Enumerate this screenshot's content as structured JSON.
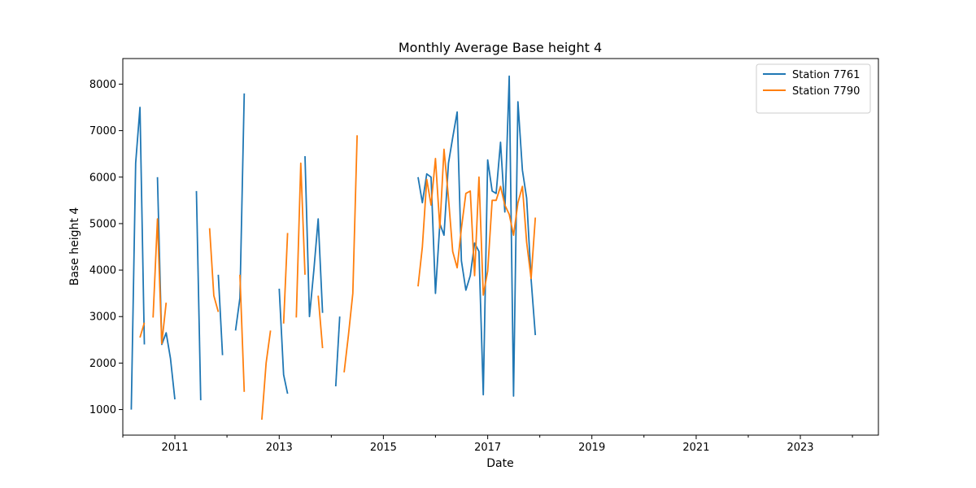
{
  "chart_data": {
    "type": "line",
    "title": "Monthly Average Base height 4",
    "xlabel": "Date",
    "ylabel": "Base height 4",
    "xlim": [
      "2010-01-01",
      "2024-07-01"
    ],
    "ylim": [
      450,
      8550
    ],
    "x_ticks": [
      "2011",
      "2013",
      "2015",
      "2017",
      "2019",
      "2021",
      "2023"
    ],
    "y_ticks": [
      "1000",
      "2000",
      "3000",
      "4000",
      "5000",
      "6000",
      "7000",
      "8000"
    ],
    "grid": false,
    "legend_position": "top-right",
    "series": [
      {
        "name": "Station 7761",
        "color": "#1f77b4",
        "segments": [
          [
            [
              "2010-03-01",
              1000
            ],
            [
              "2010-04-01",
              6300
            ],
            [
              "2010-05-01",
              7500
            ],
            [
              "2010-06-01",
              2400
            ]
          ],
          [
            [
              "2010-09-01",
              6000
            ],
            [
              "2010-10-01",
              2400
            ],
            [
              "2010-11-01",
              2650
            ],
            [
              "2010-12-01",
              2100
            ],
            [
              "2011-01-01",
              1220
            ]
          ],
          [
            [
              "2011-06-01",
              5700
            ],
            [
              "2011-07-01",
              1200
            ]
          ],
          [
            [
              "2011-11-01",
              3900
            ],
            [
              "2011-12-01",
              2170
            ]
          ],
          [
            [
              "2012-03-01",
              2700
            ],
            [
              "2012-04-01",
              3400
            ],
            [
              "2012-05-01",
              7800
            ]
          ],
          [
            [
              "2013-01-01",
              3600
            ],
            [
              "2013-02-01",
              1750
            ],
            [
              "2013-03-01",
              1340
            ]
          ],
          [
            [
              "2013-07-01",
              6450
            ],
            [
              "2013-08-01",
              3000
            ],
            [
              "2013-09-01",
              4000
            ],
            [
              "2013-10-01",
              5100
            ],
            [
              "2013-11-01",
              3080
            ]
          ],
          [
            [
              "2014-02-01",
              1500
            ],
            [
              "2014-03-01",
              3000
            ]
          ],
          [
            [
              "2015-09-01",
              6000
            ],
            [
              "2015-10-01",
              5450
            ],
            [
              "2015-11-01",
              6070
            ],
            [
              "2015-12-01",
              6000
            ],
            [
              "2016-01-01",
              3500
            ],
            [
              "2016-02-01",
              5000
            ],
            [
              "2016-03-01",
              4750
            ],
            [
              "2016-04-01",
              6300
            ],
            [
              "2016-05-01",
              6850
            ],
            [
              "2016-06-01",
              7400
            ],
            [
              "2016-07-01",
              4200
            ],
            [
              "2016-08-01",
              3570
            ],
            [
              "2016-09-01",
              3880
            ],
            [
              "2016-10-01",
              4580
            ],
            [
              "2016-11-01",
              4400
            ],
            [
              "2016-12-01",
              1320
            ],
            [
              "2017-01-01",
              6370
            ],
            [
              "2017-02-01",
              5700
            ],
            [
              "2017-03-01",
              5650
            ],
            [
              "2017-04-01",
              6750
            ],
            [
              "2017-05-01",
              5250
            ],
            [
              "2017-06-01",
              8170
            ],
            [
              "2017-07-01",
              1290
            ],
            [
              "2017-08-01",
              7620
            ],
            [
              "2017-09-01",
              6150
            ],
            [
              "2017-10-01",
              5550
            ],
            [
              "2017-11-01",
              3800
            ],
            [
              "2017-12-01",
              2600
            ]
          ]
        ]
      },
      {
        "name": "Station 7790",
        "color": "#ff7f0e",
        "segments": [
          [
            [
              "2010-05-01",
              2550
            ],
            [
              "2010-06-01",
              2870
            ]
          ],
          [
            [
              "2010-08-01",
              2980
            ],
            [
              "2010-09-01",
              5100
            ],
            [
              "2010-10-01",
              2420
            ],
            [
              "2010-11-01",
              3300
            ]
          ],
          [
            [
              "2011-09-01",
              4900
            ],
            [
              "2011-10-01",
              3450
            ],
            [
              "2011-11-01",
              3100
            ]
          ],
          [
            [
              "2012-04-01",
              3900
            ],
            [
              "2012-05-01",
              1380
            ]
          ],
          [
            [
              "2012-09-01",
              780
            ],
            [
              "2012-10-01",
              2000
            ],
            [
              "2012-11-01",
              2700
            ]
          ],
          [
            [
              "2013-02-01",
              2850
            ],
            [
              "2013-03-01",
              4800
            ]
          ],
          [
            [
              "2013-05-01",
              2980
            ],
            [
              "2013-06-01",
              6300
            ],
            [
              "2013-07-01",
              3900
            ]
          ],
          [
            [
              "2013-10-01",
              3450
            ],
            [
              "2013-11-01",
              2320
            ]
          ],
          [
            [
              "2014-04-01",
              1800
            ],
            [
              "2014-05-01",
              2600
            ],
            [
              "2014-06-01",
              3500
            ],
            [
              "2014-07-01",
              6900
            ]
          ],
          [
            [
              "2015-09-01",
              3650
            ],
            [
              "2015-10-01",
              4500
            ],
            [
              "2015-11-01",
              5950
            ],
            [
              "2015-12-01",
              5400
            ],
            [
              "2016-01-01",
              6400
            ],
            [
              "2016-02-01",
              4900
            ],
            [
              "2016-03-01",
              6600
            ],
            [
              "2016-04-01",
              5550
            ],
            [
              "2016-05-01",
              4400
            ],
            [
              "2016-06-01",
              4050
            ],
            [
              "2016-07-01",
              4900
            ],
            [
              "2016-08-01",
              5650
            ],
            [
              "2016-09-01",
              5700
            ],
            [
              "2016-10-01",
              3880
            ],
            [
              "2016-11-01",
              6000
            ],
            [
              "2016-12-01",
              3460
            ],
            [
              "2017-01-01",
              3980
            ],
            [
              "2017-02-01",
              5500
            ],
            [
              "2017-03-01",
              5500
            ],
            [
              "2017-04-01",
              5800
            ],
            [
              "2017-05-01",
              5400
            ],
            [
              "2017-06-01",
              5200
            ],
            [
              "2017-07-01",
              4750
            ],
            [
              "2017-08-01",
              5450
            ],
            [
              "2017-09-01",
              5800
            ],
            [
              "2017-10-01",
              4600
            ],
            [
              "2017-11-01",
              3820
            ],
            [
              "2017-12-01",
              5130
            ]
          ]
        ]
      }
    ]
  }
}
